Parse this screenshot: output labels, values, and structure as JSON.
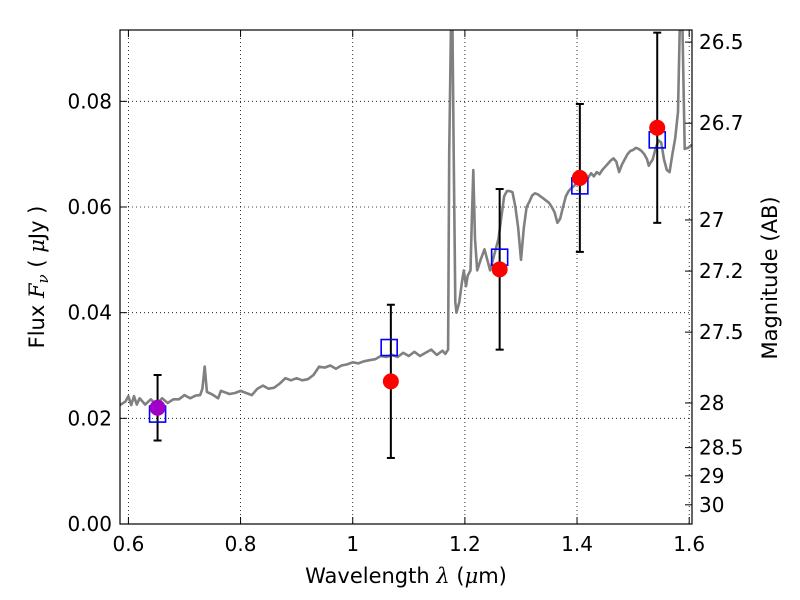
{
  "chart_data": {
    "type": "scatter",
    "xlabel": "Wavelength",
    "xlabel_symbol": "λ",
    "xlabel_unit_open": " (",
    "xlabel_unit_mu": "μ",
    "xlabel_unit_rest": "m)",
    "ylabel_left": "Flux",
    "ylabel_left_symbol": "F",
    "ylabel_left_subscript": "ν",
    "ylabel_left_unit_open": "( ",
    "ylabel_left_unit_mu": "μ",
    "ylabel_left_unit_rest": "Jy )",
    "ylabel_right": "Magnitude (AB)",
    "xlim": [
      0.585,
      1.605
    ],
    "ylim": [
      0.0,
      0.0935
    ],
    "grid": true,
    "x_ticks": [
      {
        "value": 0.6,
        "label": "0.6"
      },
      {
        "value": 0.8,
        "label": "0.8"
      },
      {
        "value": 1.0,
        "label": "1"
      },
      {
        "value": 1.2,
        "label": "1.2"
      },
      {
        "value": 1.4,
        "label": "1.4"
      },
      {
        "value": 1.6,
        "label": "1.6"
      }
    ],
    "y_ticks": [
      {
        "value": 0.0,
        "label": "0.00"
      },
      {
        "value": 0.02,
        "label": "0.02"
      },
      {
        "value": 0.04,
        "label": "0.04"
      },
      {
        "value": 0.06,
        "label": "0.06"
      },
      {
        "value": 0.08,
        "label": "0.08"
      }
    ],
    "right_ticks": [
      {
        "mag": 26.5,
        "label": "26.5"
      },
      {
        "mag": 26.7,
        "label": "26.7"
      },
      {
        "mag": 27.0,
        "label": "27"
      },
      {
        "mag": 27.2,
        "label": "27.2"
      },
      {
        "mag": 27.5,
        "label": "27.5"
      },
      {
        "mag": 28.0,
        "label": "28"
      },
      {
        "mag": 28.5,
        "label": "28.5"
      },
      {
        "mag": 29.0,
        "label": "29"
      },
      {
        "mag": 30.0,
        "label": "30"
      }
    ],
    "model_spectrum": {
      "color": "#808080",
      "points": [
        [
          0.585,
          0.0225
        ],
        [
          0.595,
          0.0232
        ],
        [
          0.6,
          0.0242
        ],
        [
          0.605,
          0.0225
        ],
        [
          0.61,
          0.0242
        ],
        [
          0.615,
          0.0226
        ],
        [
          0.62,
          0.0238
        ],
        [
          0.63,
          0.0226
        ],
        [
          0.64,
          0.0236
        ],
        [
          0.65,
          0.0226
        ],
        [
          0.66,
          0.0238
        ],
        [
          0.67,
          0.0229
        ],
        [
          0.68,
          0.0236
        ],
        [
          0.69,
          0.0236
        ],
        [
          0.7,
          0.0244
        ],
        [
          0.71,
          0.0238
        ],
        [
          0.72,
          0.0243
        ],
        [
          0.728,
          0.0244
        ],
        [
          0.732,
          0.0256
        ],
        [
          0.736,
          0.0298
        ],
        [
          0.74,
          0.025
        ],
        [
          0.75,
          0.0245
        ],
        [
          0.76,
          0.0238
        ],
        [
          0.765,
          0.0252
        ],
        [
          0.77,
          0.025
        ],
        [
          0.78,
          0.0246
        ],
        [
          0.79,
          0.0248
        ],
        [
          0.8,
          0.0252
        ],
        [
          0.81,
          0.0248
        ],
        [
          0.82,
          0.0244
        ],
        [
          0.83,
          0.0256
        ],
        [
          0.84,
          0.0262
        ],
        [
          0.85,
          0.0256
        ],
        [
          0.86,
          0.0258
        ],
        [
          0.87,
          0.0266
        ],
        [
          0.88,
          0.0276
        ],
        [
          0.89,
          0.0272
        ],
        [
          0.9,
          0.0276
        ],
        [
          0.91,
          0.0272
        ],
        [
          0.92,
          0.0274
        ],
        [
          0.93,
          0.0282
        ],
        [
          0.94,
          0.0298
        ],
        [
          0.95,
          0.0296
        ],
        [
          0.96,
          0.03
        ],
        [
          0.97,
          0.0294
        ],
        [
          0.98,
          0.03
        ],
        [
          0.99,
          0.0302
        ],
        [
          1.0,
          0.0306
        ],
        [
          1.01,
          0.0304
        ],
        [
          1.02,
          0.0308
        ],
        [
          1.03,
          0.031
        ],
        [
          1.04,
          0.0312
        ],
        [
          1.05,
          0.0318
        ],
        [
          1.06,
          0.0316
        ],
        [
          1.07,
          0.032
        ],
        [
          1.08,
          0.0316
        ],
        [
          1.09,
          0.0324
        ],
        [
          1.1,
          0.0318
        ],
        [
          1.11,
          0.0326
        ],
        [
          1.12,
          0.0318
        ],
        [
          1.13,
          0.0324
        ],
        [
          1.14,
          0.033
        ],
        [
          1.15,
          0.032
        ],
        [
          1.16,
          0.0328
        ],
        [
          1.165,
          0.0322
        ],
        [
          1.17,
          0.033
        ],
        [
          1.172,
          0.07
        ],
        [
          1.175,
          0.0935
        ],
        [
          1.178,
          0.0935
        ],
        [
          1.18,
          0.07
        ],
        [
          1.183,
          0.042
        ],
        [
          1.185,
          0.04
        ],
        [
          1.19,
          0.042
        ],
        [
          1.195,
          0.046
        ],
        [
          1.198,
          0.048
        ],
        [
          1.202,
          0.045
        ],
        [
          1.205,
          0.047
        ],
        [
          1.21,
          0.048
        ],
        [
          1.212,
          0.056
        ],
        [
          1.215,
          0.067
        ],
        [
          1.218,
          0.054
        ],
        [
          1.222,
          0.048
        ],
        [
          1.228,
          0.05
        ],
        [
          1.235,
          0.052
        ],
        [
          1.24,
          0.05
        ],
        [
          1.245,
          0.048
        ],
        [
          1.25,
          0.05
        ],
        [
          1.255,
          0.052
        ],
        [
          1.26,
          0.054
        ],
        [
          1.265,
          0.058
        ],
        [
          1.27,
          0.062
        ],
        [
          1.275,
          0.063
        ],
        [
          1.28,
          0.063
        ],
        [
          1.285,
          0.0628
        ],
        [
          1.29,
          0.06
        ],
        [
          1.295,
          0.056
        ],
        [
          1.3,
          0.05
        ],
        [
          1.305,
          0.056
        ],
        [
          1.31,
          0.06
        ],
        [
          1.315,
          0.061
        ],
        [
          1.32,
          0.0622
        ],
        [
          1.325,
          0.0626
        ],
        [
          1.33,
          0.0624
        ],
        [
          1.335,
          0.062
        ],
        [
          1.34,
          0.0616
        ],
        [
          1.345,
          0.0612
        ],
        [
          1.35,
          0.0608
        ],
        [
          1.355,
          0.06
        ],
        [
          1.36,
          0.059
        ],
        [
          1.365,
          0.057
        ],
        [
          1.37,
          0.0578
        ],
        [
          1.375,
          0.06
        ],
        [
          1.38,
          0.062
        ],
        [
          1.385,
          0.063
        ],
        [
          1.39,
          0.0636
        ],
        [
          1.395,
          0.064
        ],
        [
          1.4,
          0.0648
        ],
        [
          1.405,
          0.065
        ],
        [
          1.41,
          0.0652
        ],
        [
          1.415,
          0.066
        ],
        [
          1.42,
          0.0656
        ],
        [
          1.425,
          0.0664
        ],
        [
          1.43,
          0.0658
        ],
        [
          1.435,
          0.0666
        ],
        [
          1.44,
          0.0662
        ],
        [
          1.445,
          0.067
        ],
        [
          1.45,
          0.0676
        ],
        [
          1.455,
          0.0682
        ],
        [
          1.46,
          0.0688
        ],
        [
          1.465,
          0.0692
        ],
        [
          1.47,
          0.0686
        ],
        [
          1.475,
          0.0666
        ],
        [
          1.48,
          0.068
        ],
        [
          1.485,
          0.069
        ],
        [
          1.49,
          0.07
        ],
        [
          1.495,
          0.0706
        ],
        [
          1.5,
          0.0708
        ],
        [
          1.505,
          0.0712
        ],
        [
          1.51,
          0.071
        ],
        [
          1.515,
          0.0706
        ],
        [
          1.52,
          0.07
        ],
        [
          1.525,
          0.069
        ],
        [
          1.528,
          0.0678
        ],
        [
          1.53,
          0.0682
        ],
        [
          1.535,
          0.069
        ],
        [
          1.54,
          0.071
        ],
        [
          1.545,
          0.0726
        ],
        [
          1.55,
          0.0722
        ],
        [
          1.555,
          0.069
        ],
        [
          1.56,
          0.067
        ],
        [
          1.565,
          0.0666
        ],
        [
          1.57,
          0.07
        ],
        [
          1.575,
          0.073
        ],
        [
          1.58,
          0.078
        ],
        [
          1.583,
          0.0935
        ],
        [
          1.588,
          0.0935
        ],
        [
          1.592,
          0.071
        ],
        [
          1.598,
          0.0712
        ],
        [
          1.605,
          0.0718
        ]
      ]
    },
    "model_photometry": {
      "color": "#0000ff",
      "points": [
        {
          "x": 0.652,
          "y": 0.0208
        },
        {
          "x": 1.065,
          "y": 0.0334
        },
        {
          "x": 1.262,
          "y": 0.0505
        },
        {
          "x": 1.405,
          "y": 0.064
        },
        {
          "x": 1.543,
          "y": 0.0727
        }
      ]
    },
    "observed": {
      "color": "#ff0000",
      "first_point_color": "#a000c8",
      "errorbar_color": "#000000",
      "points": [
        {
          "x": 0.652,
          "y": 0.022,
          "err": 0.0062
        },
        {
          "x": 1.068,
          "y": 0.027,
          "err": 0.0145
        },
        {
          "x": 1.262,
          "y": 0.0482,
          "err": 0.0152
        },
        {
          "x": 1.405,
          "y": 0.0655,
          "err": 0.014
        },
        {
          "x": 1.543,
          "y": 0.075,
          "err": 0.018
        }
      ]
    }
  }
}
